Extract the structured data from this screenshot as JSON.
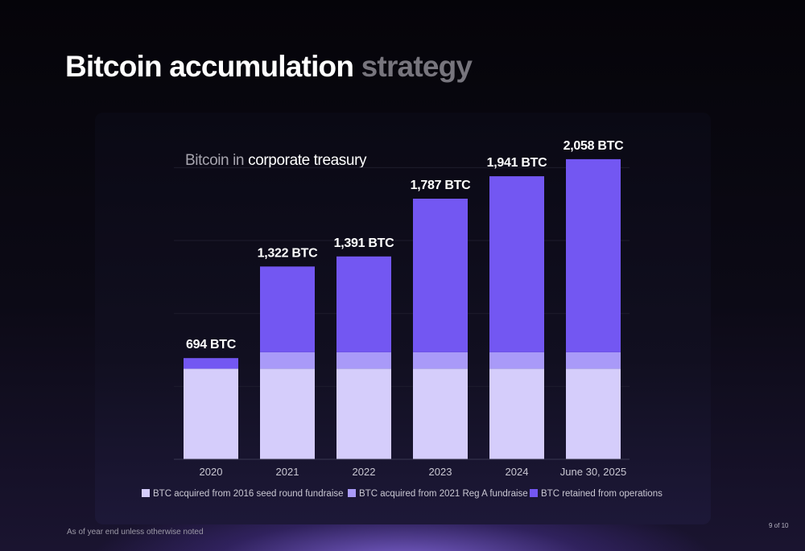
{
  "slide": {
    "title_main": "Bitcoin accumulation",
    "title_muted": "strategy",
    "footnote": "As of year end unless otherwise noted",
    "page_number": "9 of 10"
  },
  "colors": {
    "seed": "#d5cdfb",
    "rega": "#a99af8",
    "operations": "#7357f2",
    "background": "#07060c"
  },
  "chart_data": {
    "type": "bar",
    "stacked": true,
    "title_dim": "Bitcoin in",
    "title_bright": "corporate treasury",
    "categories": [
      "2020",
      "2021",
      "2022",
      "2023",
      "2024",
      "June 30, 2025"
    ],
    "series": [
      {
        "name": "BTC acquired from 2016 seed round fundraise",
        "color": "#d5cdfb",
        "values": [
          621,
          621,
          621,
          621,
          621,
          621
        ]
      },
      {
        "name": "BTC acquired from 2021 Reg A fundraise",
        "color": "#a99af8",
        "values": [
          0,
          113,
          113,
          113,
          113,
          113
        ]
      },
      {
        "name": "BTC retained from operations",
        "color": "#7357f2",
        "values": [
          73,
          588,
          657,
          1053,
          1207,
          1324
        ]
      }
    ],
    "totals": [
      694,
      1322,
      1391,
      1787,
      1941,
      2058
    ],
    "total_labels": [
      "694 BTC",
      "1,322 BTC",
      "1,391 BTC",
      "1,787 BTC",
      "1,941 BTC",
      "2,058 BTC"
    ],
    "ylim": [
      0,
      2100
    ],
    "grid": true,
    "legend_position": "bottom"
  }
}
